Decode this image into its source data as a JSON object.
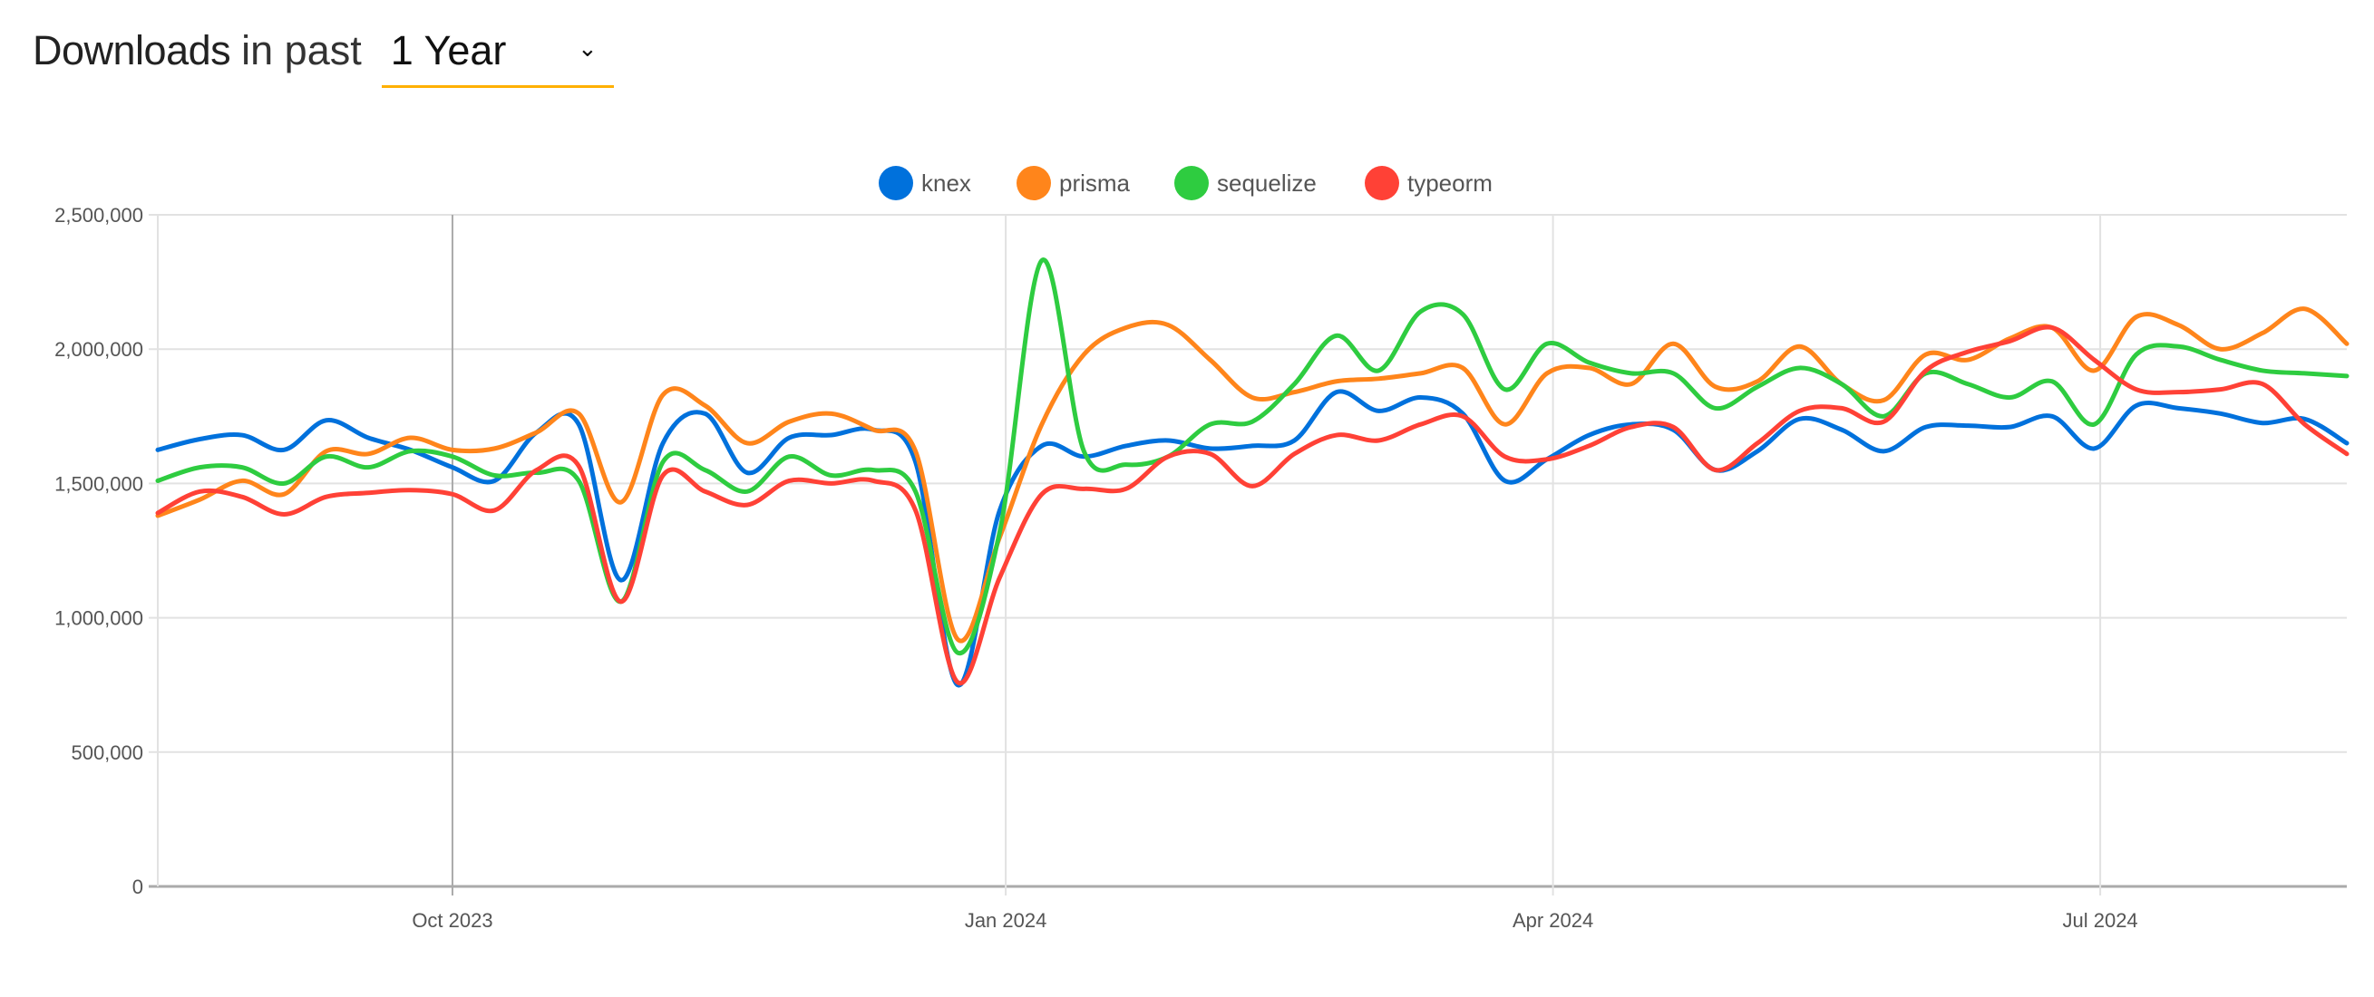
{
  "header": {
    "title_bold": "Downloads",
    "title_light": "in past",
    "period_select": {
      "value": "1 Year",
      "icon": "chevron-down-icon"
    }
  },
  "colors": {
    "accent_underline": "#ffb000"
  },
  "chart_data": {
    "type": "line",
    "title": "",
    "xlabel": "",
    "ylabel": "",
    "ylim": [
      0,
      2500000
    ],
    "yticks": [
      0,
      500000,
      1000000,
      1500000,
      2000000,
      2500000
    ],
    "ytick_labels": [
      "0",
      "500,000",
      "1,000,000",
      "1,500,000",
      "2,000,000",
      "2,500,000"
    ],
    "xticks": [
      "2023-10-01",
      "2024-01-01",
      "2024-04-01",
      "2024-07-01"
    ],
    "xtick_labels": [
      "Oct 2023",
      "Jan 2024",
      "Apr 2024",
      "Jul 2024"
    ],
    "xlim": [
      "2023-08-13",
      "2024-08-11"
    ],
    "x_start": "2023-08-13",
    "x_step_days": 7,
    "grid": true,
    "legend_position": "top-center",
    "smoothed": true,
    "series": [
      {
        "name": "knex",
        "color": "#0071dc",
        "values": [
          1625000,
          1665000,
          1680000,
          1625000,
          1735000,
          1670000,
          1625000,
          1560000,
          1510000,
          1690000,
          1720000,
          1140000,
          1650000,
          1760000,
          1540000,
          1670000,
          1680000,
          1700000,
          1580000,
          750000,
          1400000,
          1640000,
          1600000,
          1640000,
          1660000,
          1630000,
          1640000,
          1660000,
          1840000,
          1770000,
          1820000,
          1760000,
          1510000,
          1590000,
          1680000,
          1720000,
          1700000,
          1550000,
          1620000,
          1740000,
          1700000,
          1620000,
          1710000,
          1715000,
          1710000,
          1750000,
          1630000,
          1790000,
          1780000,
          1760000,
          1725000,
          1740000,
          1650000
        ]
      },
      {
        "name": "prisma",
        "color": "#ff851b",
        "values": [
          1380000,
          1440000,
          1510000,
          1460000,
          1620000,
          1610000,
          1670000,
          1625000,
          1630000,
          1690000,
          1760000,
          1430000,
          1830000,
          1790000,
          1650000,
          1730000,
          1760000,
          1700000,
          1620000,
          920000,
          1300000,
          1720000,
          1980000,
          2080000,
          2090000,
          1960000,
          1820000,
          1840000,
          1880000,
          1890000,
          1910000,
          1930000,
          1720000,
          1910000,
          1930000,
          1870000,
          2020000,
          1860000,
          1880000,
          2010000,
          1870000,
          1810000,
          1980000,
          1960000,
          2040000,
          2080000,
          1920000,
          2120000,
          2090000,
          2000000,
          2060000,
          2150000,
          2020000
        ]
      },
      {
        "name": "sequelize",
        "color": "#2ecc40",
        "values": [
          1510000,
          1560000,
          1560000,
          1500000,
          1600000,
          1560000,
          1620000,
          1600000,
          1530000,
          1540000,
          1510000,
          1060000,
          1580000,
          1550000,
          1470000,
          1600000,
          1530000,
          1550000,
          1470000,
          870000,
          1320000,
          2330000,
          1620000,
          1570000,
          1600000,
          1720000,
          1730000,
          1870000,
          2050000,
          1920000,
          2140000,
          2130000,
          1850000,
          2020000,
          1950000,
          1910000,
          1910000,
          1780000,
          1860000,
          1930000,
          1870000,
          1750000,
          1910000,
          1870000,
          1820000,
          1880000,
          1720000,
          1980000,
          2010000,
          1960000,
          1920000,
          1910000,
          1900000
        ]
      },
      {
        "name": "typeorm",
        "color": "#ff4136",
        "values": [
          1390000,
          1470000,
          1450000,
          1385000,
          1450000,
          1465000,
          1475000,
          1460000,
          1400000,
          1550000,
          1565000,
          1060000,
          1530000,
          1470000,
          1420000,
          1510000,
          1500000,
          1510000,
          1400000,
          760000,
          1150000,
          1460000,
          1480000,
          1480000,
          1600000,
          1610000,
          1490000,
          1610000,
          1680000,
          1660000,
          1720000,
          1750000,
          1600000,
          1590000,
          1640000,
          1710000,
          1710000,
          1550000,
          1650000,
          1770000,
          1780000,
          1730000,
          1920000,
          1990000,
          2030000,
          2080000,
          1960000,
          1850000,
          1840000,
          1850000,
          1870000,
          1720000,
          1610000
        ]
      }
    ]
  }
}
